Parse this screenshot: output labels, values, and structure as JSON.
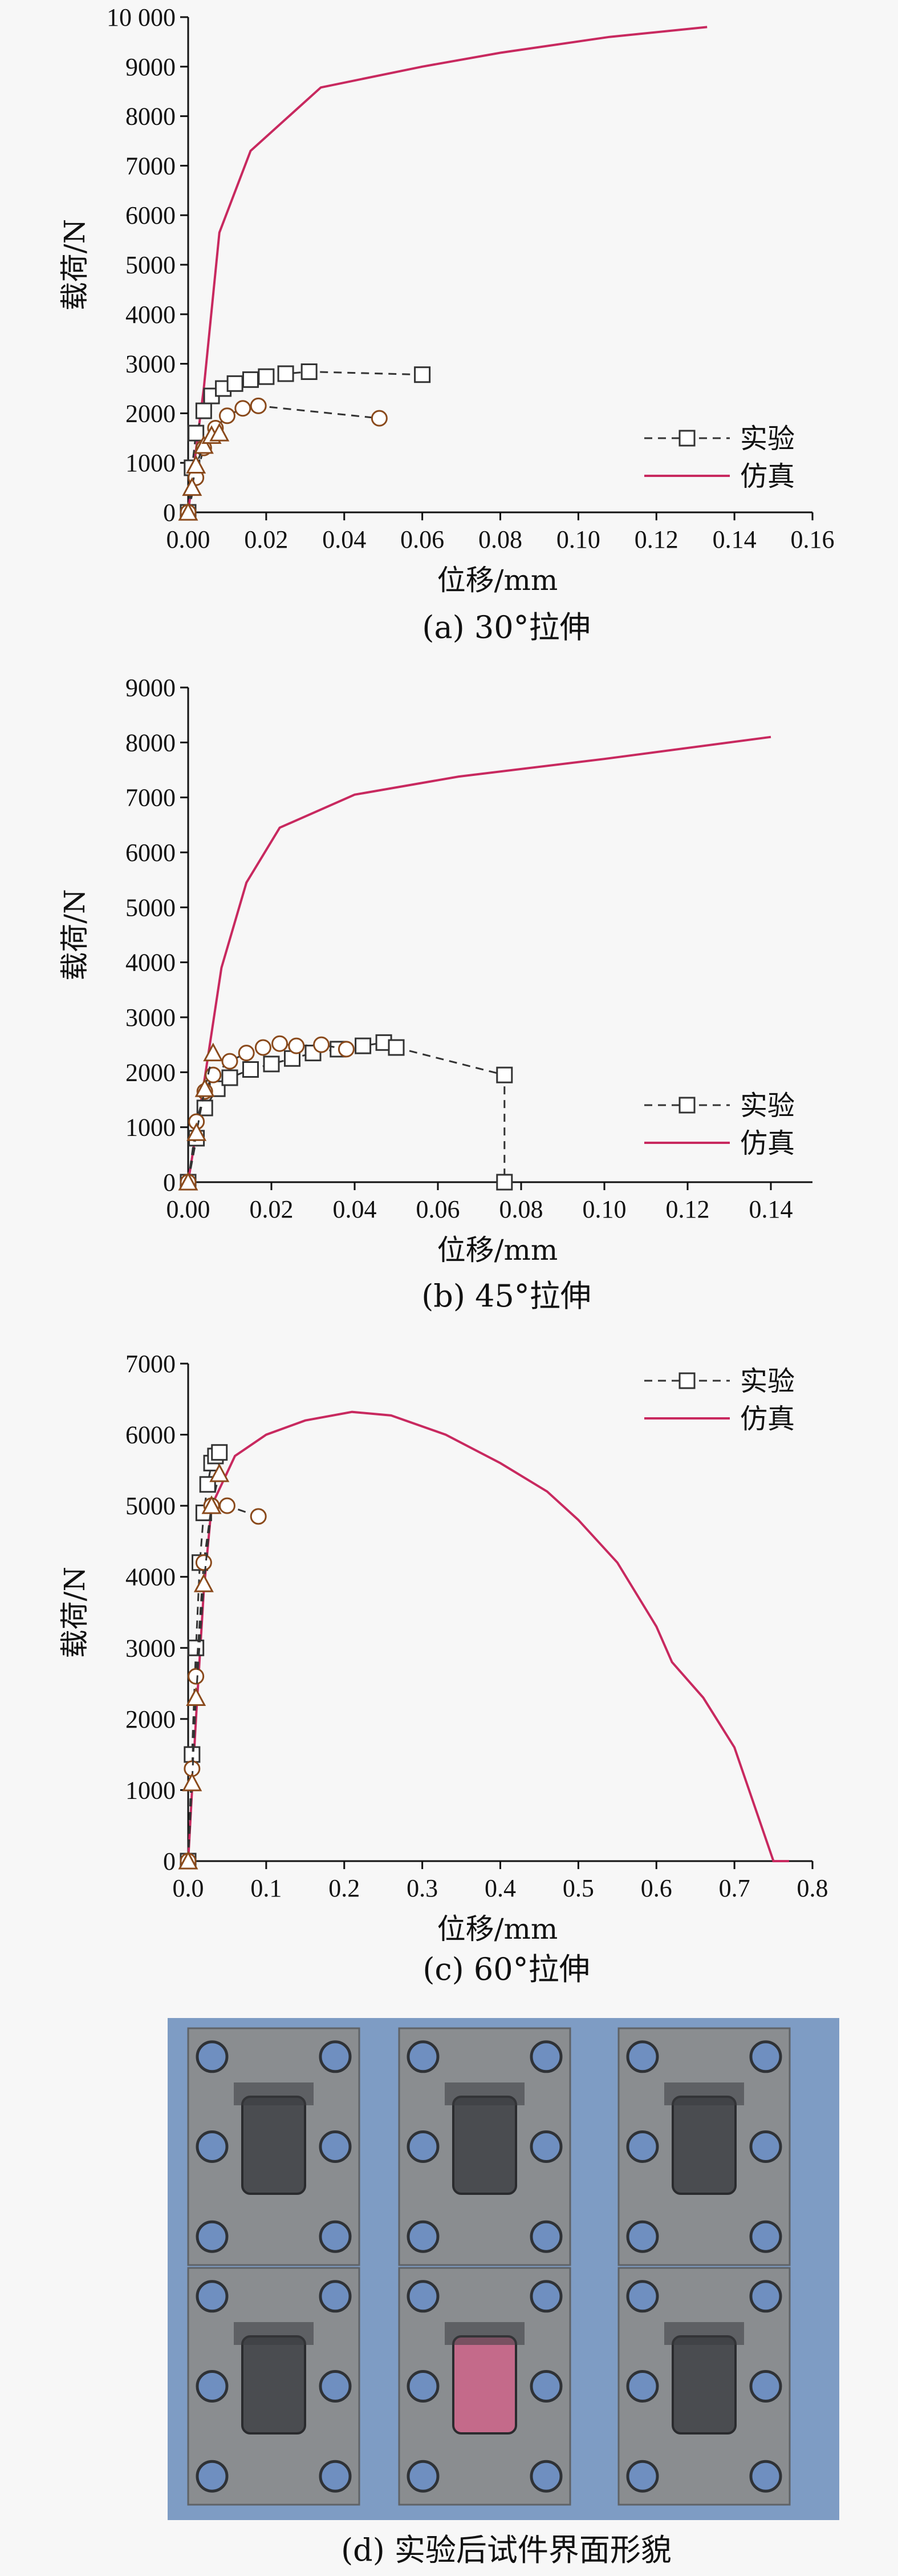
{
  "colors": {
    "simulation": "#c8295f",
    "experiment": "#333333",
    "marker_fill": "#ffffff",
    "marker_brown": "#8a4a1c",
    "photo_bg": "#7e9cc4",
    "plate": "#8a8d90"
  },
  "chart_data": [
    {
      "type": "line",
      "caption": "(a) 30°拉伸",
      "xlabel": "位移/mm",
      "ylabel": "载荷/N",
      "xlim": [
        0,
        0.16
      ],
      "ylim": [
        0,
        10000
      ],
      "xticks": [
        "0.00",
        "0.02",
        "0.04",
        "0.06",
        "0.08",
        "0.10",
        "0.12",
        "0.14",
        "0.16"
      ],
      "yticks": [
        "0",
        "1000",
        "2000",
        "3000",
        "4000",
        "5000",
        "6000",
        "7000",
        "8000",
        "9000",
        "10 000"
      ],
      "legend": {
        "position": "right",
        "entries": [
          "实验",
          "仿真"
        ]
      },
      "series": [
        {
          "name": "仿真",
          "style": "solid",
          "x": [
            0,
            0.004,
            0.008,
            0.016,
            0.034,
            0.06,
            0.08,
            0.108,
            0.133
          ],
          "y": [
            0,
            2500,
            5650,
            7300,
            8580,
            9000,
            9280,
            9600,
            9800
          ]
        },
        {
          "name": "实验",
          "style": "dashed",
          "x": [
            0,
            0.001,
            0.002,
            0.004,
            0.006,
            0.009,
            0.012,
            0.016,
            0.02,
            0.025,
            0.031,
            0.06
          ],
          "y": [
            0,
            900,
            1600,
            2050,
            2350,
            2500,
            2600,
            2680,
            2740,
            2800,
            2840,
            2780
          ]
        },
        {
          "style": "dashed",
          "x": [
            0,
            0.002,
            0.004,
            0.007,
            0.01,
            0.014,
            0.018,
            0.049
          ],
          "y": [
            0,
            700,
            1300,
            1700,
            1950,
            2100,
            2150,
            1900
          ]
        },
        {
          "style": "dashed",
          "x": [
            0,
            0.001,
            0.002,
            0.004,
            0.006,
            0.008
          ],
          "y": [
            0,
            500,
            950,
            1350,
            1550,
            1600
          ]
        }
      ]
    },
    {
      "type": "line",
      "caption": "(b) 45°拉伸",
      "xlabel": "位移/mm",
      "ylabel": "载荷/N",
      "xlim": [
        0,
        0.15
      ],
      "ylim": [
        0,
        9000
      ],
      "xticks": [
        "0.00",
        "0.02",
        "0.04",
        "0.06",
        "0.08",
        "0.10",
        "0.12",
        "0.14"
      ],
      "yticks": [
        "0",
        "1000",
        "2000",
        "3000",
        "4000",
        "5000",
        "6000",
        "7000",
        "8000",
        "9000"
      ],
      "legend": {
        "position": "right",
        "entries": [
          "实验",
          "仿真"
        ]
      },
      "series": [
        {
          "name": "仿真",
          "style": "solid",
          "x": [
            0,
            0.004,
            0.008,
            0.014,
            0.022,
            0.04,
            0.065,
            0.1,
            0.14
          ],
          "y": [
            0,
            1900,
            3900,
            5450,
            6450,
            7050,
            7380,
            7700,
            8100
          ]
        },
        {
          "name": "实验",
          "style": "dashed",
          "x": [
            0,
            0.002,
            0.004,
            0.007,
            0.01,
            0.015,
            0.02,
            0.025,
            0.03,
            0.036,
            0.042,
            0.047,
            0.05,
            0.076,
            0.076
          ],
          "y": [
            0,
            800,
            1350,
            1700,
            1900,
            2050,
            2150,
            2250,
            2350,
            2420,
            2480,
            2540,
            2450,
            1950,
            0
          ]
        },
        {
          "style": "dashed",
          "x": [
            0,
            0.002,
            0.004,
            0.006,
            0.01,
            0.014,
            0.018,
            0.022,
            0.026,
            0.032,
            0.038
          ],
          "y": [
            0,
            1100,
            1650,
            1950,
            2200,
            2350,
            2450,
            2520,
            2480,
            2500,
            2420
          ]
        },
        {
          "style": "dashed",
          "x": [
            0,
            0.002,
            0.004,
            0.006
          ],
          "y": [
            0,
            900,
            1700,
            2350
          ]
        }
      ]
    },
    {
      "type": "line",
      "caption": "(c) 60°拉伸",
      "xlabel": "位移/mm",
      "ylabel": "载荷/N",
      "xlim": [
        0,
        0.8
      ],
      "ylim": [
        0,
        7000
      ],
      "xticks": [
        "0.0",
        "0.1",
        "0.2",
        "0.3",
        "0.4",
        "0.5",
        "0.6",
        "0.7",
        "0.8"
      ],
      "yticks": [
        "0",
        "1000",
        "2000",
        "3000",
        "4000",
        "5000",
        "6000",
        "7000"
      ],
      "legend": {
        "position": "top-right",
        "entries": [
          "实验",
          "仿真"
        ]
      },
      "series": [
        {
          "name": "仿真",
          "style": "solid",
          "x": [
            0,
            0.01,
            0.02,
            0.03,
            0.06,
            0.1,
            0.15,
            0.21,
            0.26,
            0.33,
            0.4,
            0.46,
            0.5,
            0.55,
            0.6,
            0.62,
            0.66,
            0.7,
            0.75,
            0.77
          ],
          "y": [
            0,
            2000,
            3800,
            5000,
            5700,
            6000,
            6200,
            6320,
            6270,
            6000,
            5600,
            5200,
            4800,
            4200,
            3300,
            2800,
            2300,
            1600,
            0,
            0
          ]
        },
        {
          "name": "实验",
          "style": "dashed",
          "x": [
            0,
            0.005,
            0.01,
            0.015,
            0.02,
            0.025,
            0.03,
            0.035,
            0.04
          ],
          "y": [
            0,
            1500,
            3000,
            4200,
            4900,
            5300,
            5600,
            5700,
            5750
          ]
        },
        {
          "style": "dashed",
          "x": [
            0,
            0.005,
            0.01,
            0.02,
            0.03,
            0.05,
            0.09
          ],
          "y": [
            0,
            1300,
            2600,
            4200,
            5000,
            5000,
            4850
          ]
        },
        {
          "style": "dashed",
          "x": [
            0,
            0.005,
            0.01,
            0.02,
            0.03,
            0.04
          ],
          "y": [
            0,
            1100,
            2300,
            3900,
            5000,
            5450
          ]
        }
      ]
    }
  ],
  "photo": {
    "caption": "(d) 实验后试件界面形貌"
  }
}
